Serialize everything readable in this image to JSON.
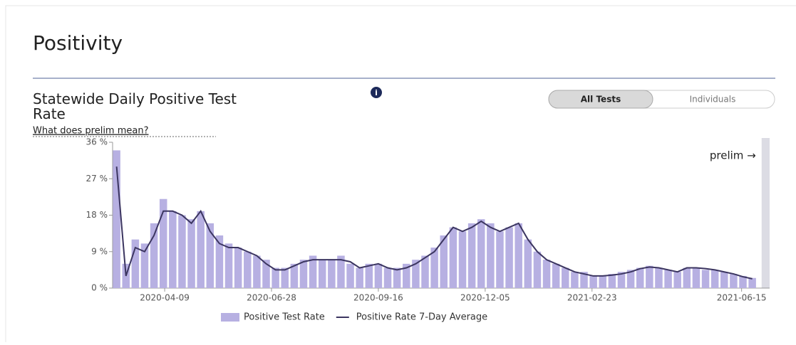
{
  "header": {
    "title": "Positivity"
  },
  "chart_title": "Statewide Daily Positive Test Rate",
  "toggle": {
    "options": [
      "All Tests",
      "Individuals"
    ],
    "active": 0
  },
  "link": "What does prelim mean?",
  "chart_data": {
    "type": "bar_line",
    "x": [
      "2020-03-04",
      "2020-03-11",
      "2020-03-18",
      "2020-03-25",
      "2020-04-01",
      "2020-04-08",
      "2020-04-15",
      "2020-04-22",
      "2020-04-29",
      "2020-05-06",
      "2020-05-13",
      "2020-05-20",
      "2020-05-27",
      "2020-06-03",
      "2020-06-10",
      "2020-06-17",
      "2020-06-24",
      "2020-07-01",
      "2020-07-08",
      "2020-07-15",
      "2020-07-22",
      "2020-07-29",
      "2020-08-05",
      "2020-08-12",
      "2020-08-19",
      "2020-08-26",
      "2020-09-02",
      "2020-09-09",
      "2020-09-16",
      "2020-09-23",
      "2020-09-30",
      "2020-10-07",
      "2020-10-14",
      "2020-10-21",
      "2020-10-28",
      "2020-11-04",
      "2020-11-11",
      "2020-11-18",
      "2020-11-25",
      "2020-12-02",
      "2020-12-09",
      "2020-12-16",
      "2020-12-23",
      "2020-12-30",
      "2021-01-06",
      "2021-01-13",
      "2021-01-20",
      "2021-01-27",
      "2021-02-03",
      "2021-02-10",
      "2021-02-17",
      "2021-02-24",
      "2021-03-03",
      "2021-03-10",
      "2021-03-17",
      "2021-03-24",
      "2021-03-31",
      "2021-04-07",
      "2021-04-14",
      "2021-04-21",
      "2021-04-28",
      "2021-05-05",
      "2021-05-12",
      "2021-05-19",
      "2021-05-26",
      "2021-06-02",
      "2021-06-09",
      "2021-06-16",
      "2021-06-23"
    ],
    "series": [
      {
        "name": "Positive Test Rate",
        "kind": "bar",
        "color": "#b7b0e2",
        "values": [
          34,
          6,
          12,
          11,
          16,
          22,
          19,
          18,
          17,
          19,
          16,
          13,
          11,
          10,
          9,
          8,
          7,
          5,
          5,
          6,
          7,
          8,
          7,
          7,
          8,
          6,
          5,
          6,
          6,
          5,
          5,
          6,
          7,
          8,
          10,
          13,
          15,
          14,
          16,
          17,
          16,
          14,
          15,
          16,
          12,
          9,
          7,
          6,
          5,
          4,
          4,
          3,
          3,
          3.5,
          4,
          4.5,
          5,
          5.5,
          5,
          4.5,
          4,
          5,
          5,
          4.5,
          4.5,
          4,
          3.5,
          3,
          2.5
        ]
      },
      {
        "name": "Positive Rate 7-Day Average",
        "kind": "line",
        "color": "#3b3560",
        "values": [
          30,
          3,
          10,
          9,
          13,
          19,
          19,
          18,
          16,
          19,
          14,
          11,
          10,
          10,
          9,
          8,
          6,
          4.5,
          4.5,
          5.5,
          6.5,
          7,
          7,
          7,
          7,
          6.5,
          5,
          5.5,
          6,
          5,
          4.5,
          5,
          6,
          7.5,
          9,
          12,
          15,
          14,
          15,
          16.5,
          15,
          14,
          15,
          16,
          12,
          9,
          7,
          6,
          5,
          4,
          3.5,
          3,
          3,
          3.2,
          3.5,
          4,
          4.8,
          5.2,
          5,
          4.5,
          4,
          5,
          5,
          4.8,
          4.5,
          4,
          3.5,
          2.8,
          2.3
        ]
      }
    ],
    "xlim": [
      "2020-03-01",
      "2021-07-06"
    ],
    "xticks": [
      "2020-04-09",
      "2020-06-28",
      "2020-09-16",
      "2020-12-05",
      "2021-02-23",
      "2021-06-15"
    ],
    "ylim": [
      0,
      36
    ],
    "yticks": [
      {
        "value": 0,
        "label": "0 %"
      },
      {
        "value": 9,
        "label": "9 %"
      },
      {
        "value": 18,
        "label": "18 %"
      },
      {
        "value": 27,
        "label": "27 %"
      },
      {
        "value": 36,
        "label": "36 %"
      }
    ],
    "annotation": {
      "text": "prelim →",
      "x": "2021-06-30"
    },
    "legend": "bottom"
  }
}
